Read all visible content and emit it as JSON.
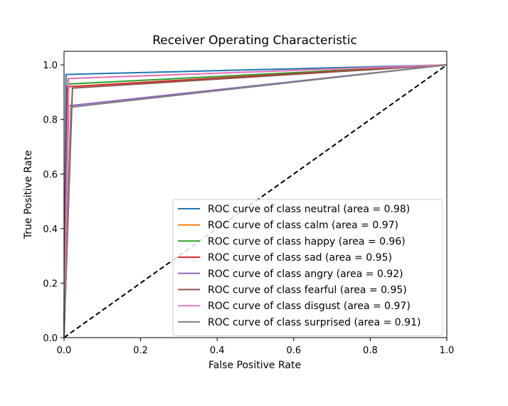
{
  "chart_data": {
    "type": "line",
    "title": "Receiver Operating Characteristic",
    "xlabel": "False Positive Rate",
    "ylabel": "True Positive Rate",
    "xlim": [
      0.0,
      1.0
    ],
    "ylim": [
      0.0,
      1.05
    ],
    "xticks": [
      "0.0",
      "0.2",
      "0.4",
      "0.6",
      "0.8",
      "1.0"
    ],
    "yticks": [
      "0.0",
      "0.2",
      "0.4",
      "0.6",
      "0.8",
      "1.0"
    ],
    "grid": false,
    "legend_position": "lower-right",
    "series": [
      {
        "name": "ROC curve of class neutral (area = 0.98)",
        "color": "#1f77b4",
        "points": [
          [
            0,
            0
          ],
          [
            0.005,
            0.965
          ],
          [
            1,
            1
          ]
        ]
      },
      {
        "name": "ROC curve of class calm (area = 0.97)",
        "color": "#ff7f0e",
        "points": [
          [
            0,
            0
          ],
          [
            0.01,
            0.95
          ],
          [
            1,
            1
          ]
        ]
      },
      {
        "name": "ROC curve of class happy (area = 0.96)",
        "color": "#2ca02c",
        "points": [
          [
            0,
            0
          ],
          [
            0.012,
            0.93
          ],
          [
            1,
            1
          ]
        ]
      },
      {
        "name": "ROC curve of class sad (area = 0.95)",
        "color": "#d62728",
        "points": [
          [
            0,
            0
          ],
          [
            0.008,
            0.92
          ],
          [
            1,
            1
          ]
        ]
      },
      {
        "name": "ROC curve of class angry (area = 0.92)",
        "color": "#9467bd",
        "points": [
          [
            0,
            0
          ],
          [
            0.012,
            0.85
          ],
          [
            1,
            1
          ]
        ]
      },
      {
        "name": "ROC curve of class fearful (area = 0.95)",
        "color": "#8c564b",
        "points": [
          [
            0,
            0
          ],
          [
            0.022,
            0.915
          ],
          [
            1,
            1
          ]
        ]
      },
      {
        "name": "ROC curve of class disgust (area = 0.97)",
        "color": "#e377c2",
        "points": [
          [
            0,
            0
          ],
          [
            0.012,
            0.95
          ],
          [
            1,
            1
          ]
        ]
      },
      {
        "name": "ROC curve of class surprised (area = 0.91)",
        "color": "#7f7f7f",
        "points": [
          [
            0,
            0
          ],
          [
            0.018,
            0.845
          ],
          [
            1,
            1
          ]
        ]
      }
    ],
    "reference_line": {
      "points": [
        [
          0,
          0
        ],
        [
          1,
          1
        ]
      ],
      "color": "#000000",
      "style": "dashed"
    }
  }
}
